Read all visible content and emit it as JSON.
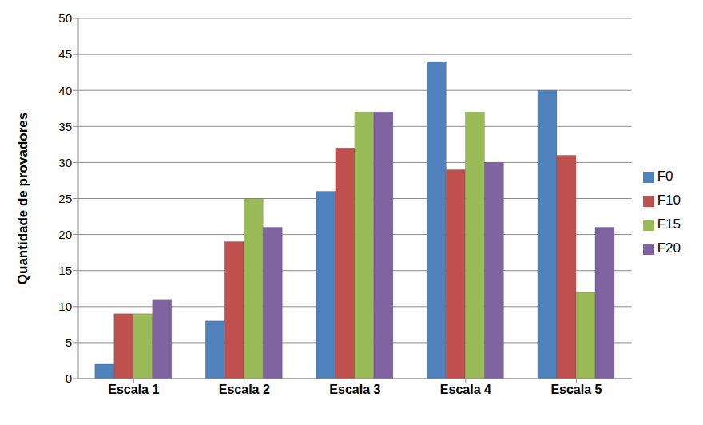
{
  "chart_data": {
    "type": "bar",
    "y_label": "Quantidade de provadores",
    "categories": [
      "Escala 1",
      "Escala 2",
      "Escala 3",
      "Escala 4",
      "Escala 5"
    ],
    "series": [
      {
        "name": "F0",
        "color": "#4f81bd",
        "values": [
          2,
          8,
          26,
          44,
          40
        ]
      },
      {
        "name": "F10",
        "color": "#c0504d",
        "values": [
          9,
          19,
          32,
          29,
          31
        ]
      },
      {
        "name": "F15",
        "color": "#9bbb59",
        "values": [
          9,
          25,
          37,
          37,
          12
        ]
      },
      {
        "name": "F20",
        "color": "#8064a2",
        "values": [
          11,
          21,
          37,
          30,
          21
        ]
      }
    ],
    "ylim": [
      0,
      50
    ],
    "yticks": [
      0,
      5,
      10,
      15,
      20,
      25,
      30,
      35,
      40,
      45,
      50
    ],
    "grid": true,
    "legend": "right"
  }
}
